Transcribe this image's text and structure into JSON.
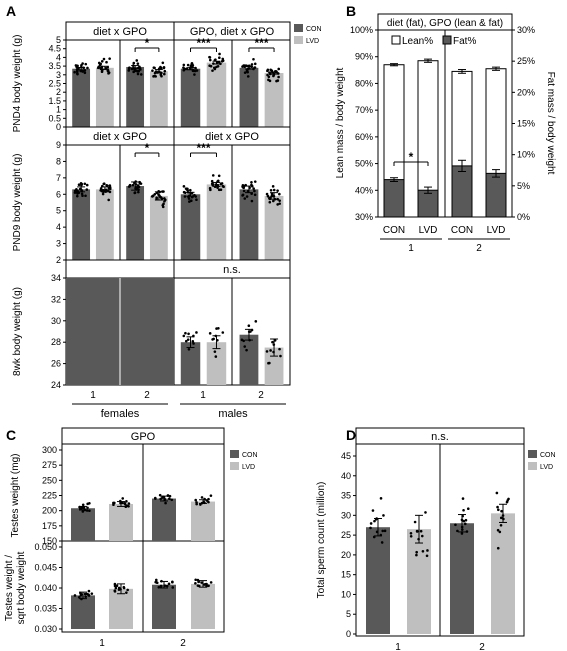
{
  "chart_data": [
    {
      "panel": "A",
      "type": "bar",
      "description_series": [
        "CON",
        "LVD"
      ],
      "colors": {
        "CON": "#595959",
        "LVD": "#bfbfbf"
      },
      "legend": {
        "placement": "right",
        "entries": [
          "CON",
          "LVD"
        ]
      },
      "group_labels": [
        "females",
        "males"
      ],
      "litter_labels": [
        "1",
        "2"
      ],
      "rows": [
        {
          "ylabel": "PND4 body weight (g)",
          "ylim": [
            0,
            5
          ],
          "yticks": [
            "0",
            "0.5",
            "1",
            "1.5",
            "2",
            "2.5",
            "3",
            "3.5",
            "4",
            "4.5",
            "5"
          ],
          "females": {
            "header": "diet x GPO",
            "values": [
              3.35,
              3.4,
              3.45,
              3.2
            ],
            "errors": [
              0.07,
              0.09,
              0.08,
              0.1
            ],
            "brackets": [
              {
                "cells": [
                  2,
                  3
                ],
                "label": "*"
              }
            ]
          },
          "males": {
            "header": "GPO, diet x GPO",
            "values": [
              3.35,
              3.7,
              3.4,
              3.1
            ],
            "errors": [
              0.06,
              0.08,
              0.07,
              0.06
            ],
            "brackets": [
              {
                "cells": [
                  0,
                  1
                ],
                "label": "***"
              },
              {
                "cells": [
                  2,
                  3
                ],
                "label": "***"
              }
            ]
          }
        },
        {
          "ylabel": "PND9 body weight (g)",
          "ylim": [
            2,
            9
          ],
          "yticks": [
            "2",
            "3",
            "4",
            "5",
            "6",
            "7",
            "8",
            "9"
          ],
          "females": {
            "header": "diet x GPO",
            "values": [
              6.3,
              6.3,
              6.5,
              5.9
            ],
            "errors": [
              0.15,
              0.15,
              0.25,
              0.25
            ],
            "brackets": [
              {
                "cells": [
                  2,
                  3
                ],
                "label": "*"
              }
            ]
          },
          "males": {
            "header": "diet x GPO",
            "values": [
              6.0,
              6.6,
              6.3,
              5.9
            ],
            "errors": [
              0.12,
              0.12,
              0.2,
              0.2
            ],
            "brackets": [
              {
                "cells": [
                  0,
                  1
                ],
                "label": "***"
              }
            ]
          }
        },
        {
          "ylabel": "8wk body weight (g)",
          "ylim": [
            24,
            34
          ],
          "yticks": [
            "24",
            "26",
            "28",
            "30",
            "32",
            "34"
          ],
          "females": {
            "header": "",
            "values": [],
            "errors": [],
            "brackets": []
          },
          "males": {
            "header": "n.s.",
            "values": [
              28.0,
              28.0,
              28.7,
              27.5
            ],
            "errors": [
              0.5,
              0.6,
              0.5,
              0.8
            ],
            "brackets": []
          }
        }
      ]
    },
    {
      "panel": "B",
      "type": "bar",
      "header": "diet (fat), GPO (lean & fat)",
      "legend_entries": [
        "Lean%",
        "Fat%"
      ],
      "colors": {
        "Lean%": "#ffffff",
        "Fat%": "#595959"
      },
      "ylabel": "Lean mass / body weight",
      "y2label": "Fat mass / body weight",
      "ylim": [
        30,
        100
      ],
      "y2lim": [
        0,
        30
      ],
      "yticks": [
        "30%",
        "40%",
        "50%",
        "60%",
        "70%",
        "80%",
        "90%",
        "100%"
      ],
      "y2ticks": [
        "0%",
        "5%",
        "10%",
        "15%",
        "20%",
        "25%",
        "30%"
      ],
      "categories": [
        "CON",
        "LVD",
        "CON",
        "LVD"
      ],
      "litter_labels": [
        "1",
        "2"
      ],
      "series": [
        {
          "name": "Lean%",
          "values": [
            87,
            88.5,
            84.5,
            85.5
          ],
          "errors": [
            0.4,
            0.6,
            0.7,
            0.6
          ]
        },
        {
          "name": "Fat%",
          "values": [
            6.0,
            4.3,
            8.2,
            7.0
          ],
          "errors": [
            0.3,
            0.5,
            0.9,
            0.6
          ]
        }
      ],
      "brackets": [
        {
          "cells": [
            0,
            1
          ],
          "label": "*"
        }
      ]
    },
    {
      "panel": "C",
      "type": "bar",
      "header": "GPO",
      "legend": {
        "placement": "right",
        "entries": [
          "CON",
          "LVD"
        ]
      },
      "colors": {
        "CON": "#595959",
        "LVD": "#bfbfbf"
      },
      "litter_labels": [
        "1",
        "2"
      ],
      "rows": [
        {
          "ylabel": "Testes weight (mg)",
          "ylim": [
            150,
            300
          ],
          "yticks": [
            "150",
            "175",
            "200",
            "225",
            "250",
            "275",
            "300"
          ],
          "values": [
            204,
            211,
            220,
            215
          ],
          "errors": [
            3,
            4,
            4,
            3
          ]
        },
        {
          "ylabel": "Testes weight / sqrt body weight",
          "ylim": [
            0.03,
            0.05
          ],
          "yticks": [
            "0.030",
            "0.035",
            "0.040",
            "0.045",
            "0.050"
          ],
          "values": [
            0.0382,
            0.0398,
            0.0408,
            0.041
          ],
          "errors": [
            0.0008,
            0.0012,
            0.0008,
            0.0008
          ]
        }
      ]
    },
    {
      "panel": "D",
      "type": "bar",
      "header": "n.s.",
      "legend": {
        "placement": "right",
        "entries": [
          "CON",
          "LVD"
        ]
      },
      "colors": {
        "CON": "#595959",
        "LVD": "#bfbfbf"
      },
      "ylabel": "Total sperm count (million)",
      "ylim": [
        0,
        45
      ],
      "yticks": [
        "0",
        "5",
        "10",
        "15",
        "20",
        "25",
        "30",
        "35",
        "40",
        "45"
      ],
      "litter_labels": [
        "1",
        "2"
      ],
      "values": [
        27,
        26.5,
        28,
        30.5
      ],
      "errors": [
        2.2,
        3.5,
        2.2,
        2.3
      ]
    }
  ]
}
